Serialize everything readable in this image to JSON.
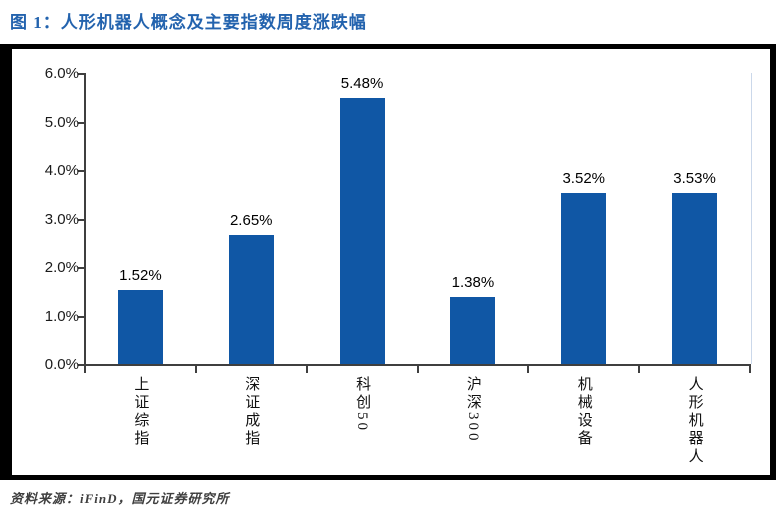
{
  "header": {
    "title": "图 1：人形机器人概念及主要指数周度涨跌幅"
  },
  "footer": {
    "source": "资料来源：iFinD，国元证券研究所"
  },
  "colors": {
    "bar": "#1057A5",
    "title": "#2363AE",
    "frame": "#000000",
    "axis": "#3F3F3F",
    "text": "#1A1A1A",
    "source_text": "#3F3F3F",
    "plot_right_border": "#CBD8EA",
    "background": "#FFFFFF"
  },
  "chart_data": {
    "type": "bar",
    "title": "图 1：人形机器人概念及主要指数周度涨跌幅",
    "categories": [
      "上证综指",
      "深证成指",
      "科创50",
      "沪深300",
      "机械设备",
      "人形机器人"
    ],
    "values": [
      1.52,
      2.65,
      5.48,
      1.38,
      3.52,
      3.53
    ],
    "data_labels": [
      "1.52%",
      "2.65%",
      "5.48%",
      "1.38%",
      "3.52%",
      "3.53%"
    ],
    "xlabel": "",
    "ylabel": "",
    "y_axis": {
      "tick_labels": [
        "6.0%",
        "5.0%",
        "4.0%",
        "3.0%",
        "2.0%",
        "1.0%",
        "0.0%"
      ],
      "min": 0,
      "max": 6,
      "unit": "%"
    },
    "grid": false,
    "legend": false,
    "bar_color": "#1057A5"
  }
}
